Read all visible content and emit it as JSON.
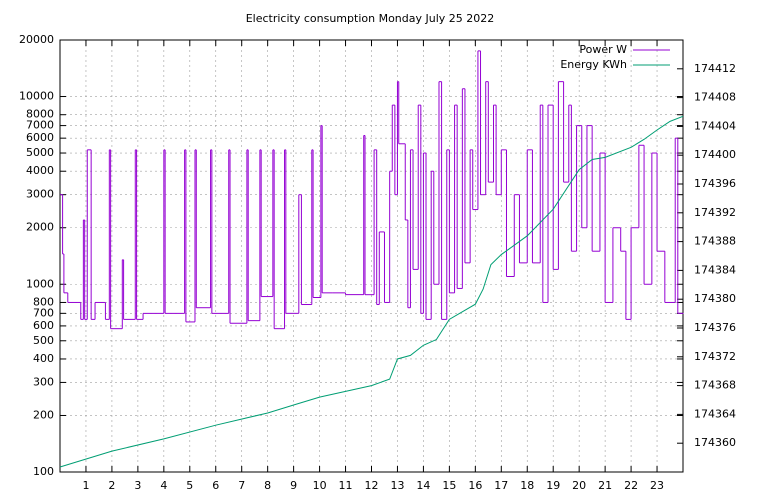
{
  "chart_data": {
    "type": "line",
    "title": "Electricity consumption Monday July 25 2022",
    "xlim": [
      0,
      24
    ],
    "xticks": [
      1,
      2,
      3,
      4,
      5,
      6,
      7,
      8,
      9,
      10,
      11,
      12,
      13,
      14,
      15,
      16,
      17,
      18,
      19,
      20,
      21,
      22,
      23
    ],
    "ylim": [
      100,
      20000
    ],
    "log_y": true,
    "yticks": [
      100,
      200,
      300,
      400,
      500,
      600,
      700,
      800,
      1000,
      2000,
      3000,
      4000,
      5000,
      6000,
      7000,
      8000,
      10000,
      20000
    ],
    "y2lim": [
      174356,
      174416
    ],
    "y2ticks": [
      174360,
      174364,
      174368,
      174372,
      174376,
      174380,
      174384,
      174388,
      174392,
      174396,
      174400,
      174404,
      174408,
      174412
    ],
    "grid": true,
    "legend": "top-right",
    "series": [
      {
        "name": "Power W",
        "color": "#9400d3",
        "steps": true,
        "x": [
          0,
          0.1,
          0.15,
          0.3,
          0.8,
          0.9,
          0.95,
          1.05,
          1.2,
          1.35,
          1.75,
          1.9,
          1.95,
          2.4,
          2.45,
          2.9,
          2.95,
          3.2,
          4.0,
          4.05,
          4.8,
          4.85,
          5.2,
          5.25,
          5.8,
          5.85,
          6.5,
          6.55,
          7.2,
          7.25,
          7.7,
          7.75,
          8.2,
          8.25,
          8.65,
          8.7,
          9.2,
          9.3,
          9.7,
          9.75,
          10.05,
          10.1,
          10.5,
          11.0,
          11.7,
          11.75,
          12.1,
          12.2,
          12.3,
          12.5,
          12.7,
          12.8,
          12.9,
          13.0,
          13.05,
          13.3,
          13.4,
          13.5,
          13.6,
          13.8,
          13.9,
          14.0,
          14.1,
          14.3,
          14.4,
          14.6,
          14.7,
          14.9,
          15.0,
          15.2,
          15.3,
          15.5,
          15.6,
          15.8,
          15.9,
          16.1,
          16.2,
          16.4,
          16.5,
          16.7,
          16.8,
          17.0,
          17.2,
          17.5,
          17.7,
          18.0,
          18.2,
          18.5,
          18.6,
          18.8,
          19.0,
          19.2,
          19.4,
          19.6,
          19.7,
          19.9,
          20.1,
          20.3,
          20.5,
          20.8,
          21.0,
          21.3,
          21.6,
          21.8,
          22.0,
          22.3,
          22.5,
          22.8,
          23.0,
          23.3,
          23.5,
          23.7,
          23.8,
          24.0
        ],
        "values": [
          3000,
          1450,
          900,
          800,
          650,
          2200,
          650,
          5200,
          650,
          800,
          650,
          5200,
          580,
          1350,
          650,
          5200,
          650,
          700,
          5200,
          700,
          5200,
          630,
          5200,
          750,
          5200,
          700,
          5200,
          620,
          5200,
          640,
          5200,
          860,
          5200,
          580,
          5200,
          700,
          3000,
          780,
          5200,
          850,
          7000,
          900,
          900,
          880,
          6200,
          880,
          5200,
          780,
          1900,
          800,
          4000,
          9000,
          3000,
          12000,
          5600,
          2200,
          750,
          5200,
          1200,
          9000,
          700,
          5000,
          650,
          4000,
          1000,
          12000,
          650,
          5200,
          900,
          9000,
          950,
          11000,
          1300,
          5200,
          2500,
          17500,
          3000,
          12000,
          3500,
          9000,
          3000,
          5200,
          1100,
          3000,
          1300,
          5200,
          1300,
          9000,
          800,
          9000,
          1200,
          12000,
          3500,
          9000,
          1500,
          7000,
          2000,
          7000,
          1500,
          5000,
          800,
          2000,
          1500,
          650,
          2000,
          5500,
          1000,
          5000,
          1500,
          800,
          800,
          6000,
          700,
          700
        ]
      },
      {
        "name": "Energy KWh",
        "color": "#009e73",
        "axis": "y2",
        "x": [
          0,
          2,
          4,
          6,
          8,
          9,
          10,
          11,
          12,
          12.7,
          13,
          13.5,
          14,
          14.5,
          15,
          16,
          16.3,
          16.6,
          17,
          18,
          19,
          20,
          20.5,
          21,
          22,
          22.5,
          23,
          23.5,
          24
        ],
        "values": [
          174356.7,
          174358.9,
          174360.6,
          174362.5,
          174364.2,
          174365.3,
          174366.4,
          174367.2,
          174368.0,
          174368.9,
          174371.7,
          174372.2,
          174373.6,
          174374.4,
          174377.2,
          174379.3,
          174381.4,
          174384.8,
          174386.2,
          174388.8,
          174392.5,
          174398.0,
          174399.4,
          174399.7,
          174401.1,
          174402.2,
          174403.5,
          174404.7,
          174405.4
        ]
      }
    ]
  }
}
